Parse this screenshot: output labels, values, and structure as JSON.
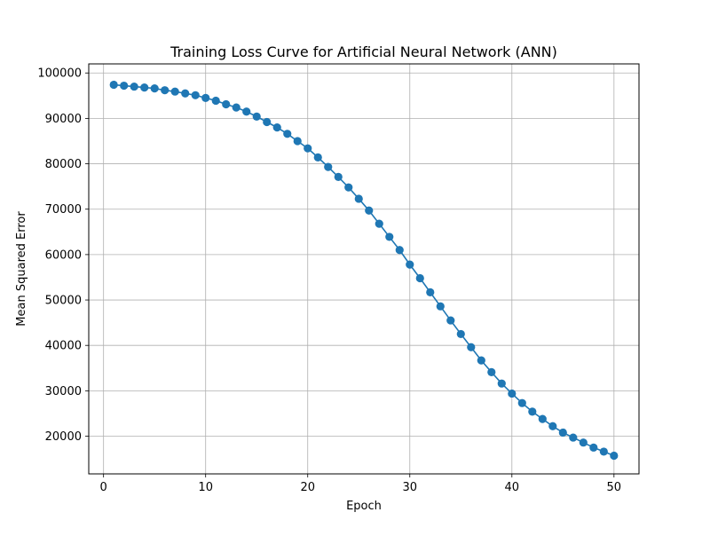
{
  "chart_data": {
    "type": "line",
    "title": "Training Loss Curve for Artificial Neural Network (ANN)",
    "xlabel": "Epoch",
    "ylabel": "Mean Squared Error",
    "xlim": [
      -1.45,
      52.45
    ],
    "ylim": [
      11700,
      102000
    ],
    "xticks": [
      0,
      10,
      20,
      30,
      40,
      50
    ],
    "yticks": [
      20000,
      30000,
      40000,
      50000,
      60000,
      70000,
      80000,
      90000,
      100000
    ],
    "grid": true,
    "marker": "circle",
    "line_color": "#1f77b4",
    "series": [
      {
        "x": [
          1,
          2,
          3,
          4,
          5,
          6,
          7,
          8,
          9,
          10,
          11,
          12,
          13,
          14,
          15,
          16,
          17,
          18,
          19,
          20,
          21,
          22,
          23,
          24,
          25,
          26,
          27,
          28,
          29,
          30,
          31,
          32,
          33,
          34,
          35,
          36,
          37,
          38,
          39,
          40,
          41,
          42,
          43,
          44,
          45,
          46,
          47,
          48,
          49,
          50
        ],
        "values": [
          97400,
          97200,
          97000,
          96800,
          96600,
          96200,
          95900,
          95500,
          95100,
          94500,
          93900,
          93100,
          92400,
          91500,
          90400,
          89200,
          88000,
          86600,
          85000,
          83400,
          81400,
          79300,
          77100,
          74800,
          72300,
          69700,
          66800,
          63900,
          61000,
          57800,
          54800,
          51700,
          48600,
          45500,
          42500,
          39600,
          36700,
          34100,
          31600,
          29400,
          27300,
          25400,
          23800,
          22200,
          20800,
          19700,
          18600,
          17500,
          16600,
          15700
        ]
      }
    ]
  }
}
